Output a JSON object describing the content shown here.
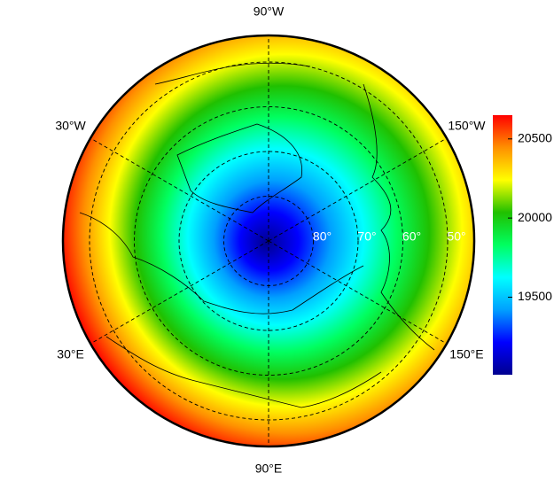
{
  "chart_data": {
    "type": "polar-map",
    "projection": "north-polar",
    "lon_ticks": [
      {
        "value": -90,
        "label": "90°W"
      },
      {
        "value": -30,
        "label": "30°W"
      },
      {
        "value": -150,
        "label": "150°W"
      },
      {
        "value": 30,
        "label": "30°E"
      },
      {
        "value": 150,
        "label": "150°E"
      },
      {
        "value": 90,
        "label": "90°E"
      }
    ],
    "lat_ticks": [
      {
        "value": 80,
        "label": "80°"
      },
      {
        "value": 70,
        "label": "70°"
      },
      {
        "value": 60,
        "label": "60°"
      },
      {
        "value": 50,
        "label": "50°"
      }
    ],
    "colorbar": {
      "lim": [
        19010,
        20650
      ],
      "ticks": [
        19500,
        20000,
        20500
      ],
      "colors": [
        "#00008f",
        "#0000ff",
        "#00a0ff",
        "#00ffff",
        "#00ff60",
        "#20c000",
        "#ffff00",
        "#ff9000",
        "#ff0000"
      ]
    }
  }
}
